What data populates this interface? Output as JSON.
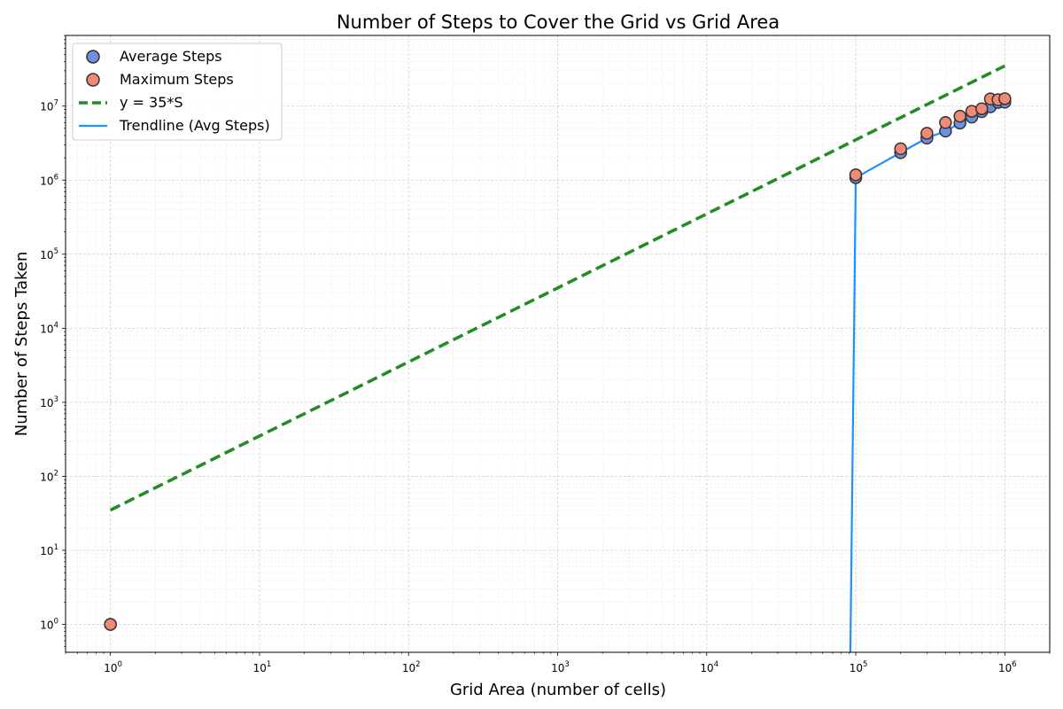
{
  "chart_data": {
    "type": "scatter",
    "title": "Number of Steps to Cover the Grid vs Grid Area",
    "xlabel": "Grid Area (number of cells)",
    "ylabel": "Number of Steps Taken",
    "xscale": "log",
    "yscale": "log",
    "xlim": [
      0.5,
      2000000
    ],
    "ylim": [
      0.42,
      90000000
    ],
    "grid": true,
    "legend_position": "top-left",
    "x_tick_base": "10",
    "x_tick_exponents": [
      "0",
      "1",
      "2",
      "3",
      "4",
      "5",
      "6"
    ],
    "y_tick_base": "10",
    "y_tick_exponents": [
      "0",
      "1",
      "2",
      "3",
      "4",
      "5",
      "6",
      "7"
    ],
    "series": [
      {
        "name": "Average Steps",
        "kind": "scatter",
        "color": "#6f8fdf",
        "points": [
          [
            1,
            1
          ],
          [
            100000,
            1080000
          ],
          [
            200000,
            2350000
          ],
          [
            300000,
            3700000
          ],
          [
            400000,
            4600000
          ],
          [
            500000,
            5900000
          ],
          [
            600000,
            7100000
          ],
          [
            700000,
            8400000
          ],
          [
            800000,
            9800000
          ],
          [
            900000,
            11200000
          ],
          [
            1000000,
            11300000
          ]
        ]
      },
      {
        "name": "Maximum Steps",
        "kind": "scatter",
        "color": "#f08a74",
        "points": [
          [
            1,
            1
          ],
          [
            100000,
            1180000
          ],
          [
            200000,
            2650000
          ],
          [
            300000,
            4300000
          ],
          [
            400000,
            6000000
          ],
          [
            500000,
            7300000
          ],
          [
            600000,
            8500000
          ],
          [
            700000,
            9200000
          ],
          [
            800000,
            12500000
          ],
          [
            900000,
            12200000
          ],
          [
            1000000,
            12600000
          ]
        ]
      },
      {
        "name": "y = 35*S",
        "kind": "line",
        "style": "dashed",
        "color": "#228b22",
        "points": [
          [
            1,
            35
          ],
          [
            1000000,
            35000000
          ]
        ]
      },
      {
        "name": "Trendline (Avg Steps)",
        "kind": "line",
        "style": "solid",
        "color": "#1e90ff",
        "points": [
          [
            92000,
            0.42
          ],
          [
            100000,
            1080000
          ],
          [
            200000,
            2350000
          ],
          [
            300000,
            3700000
          ],
          [
            400000,
            4600000
          ],
          [
            500000,
            5900000
          ],
          [
            600000,
            7100000
          ],
          [
            700000,
            8400000
          ],
          [
            800000,
            9800000
          ],
          [
            900000,
            11200000
          ],
          [
            1000000,
            11300000
          ]
        ]
      }
    ]
  }
}
